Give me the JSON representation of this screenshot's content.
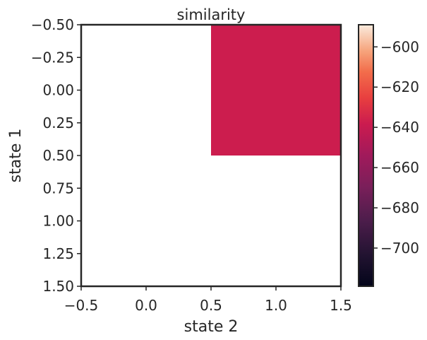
{
  "chart_data": {
    "type": "heatmap",
    "title": "similarity",
    "xlabel": "state 2",
    "ylabel": "state 1",
    "x_ticks": [
      "−0.5",
      "0.0",
      "0.5",
      "1.0",
      "1.5"
    ],
    "y_ticks": [
      "−0.50",
      "−0.25",
      "0.00",
      "0.25",
      "0.50",
      "0.75",
      "1.00",
      "1.25",
      "1.50"
    ],
    "xlim": [
      -0.5,
      1.5
    ],
    "ylim": [
      -0.5,
      1.5
    ],
    "y_inverted": true,
    "cells": [
      {
        "row": 0,
        "col": 0,
        "value": null
      },
      {
        "row": 0,
        "col": 1,
        "value": -660
      },
      {
        "row": 1,
        "col": 0,
        "value": null
      },
      {
        "row": 1,
        "col": 1,
        "value": null
      }
    ],
    "cell_color": "#cc1d4e",
    "colorbar": {
      "ticks": [
        "−600",
        "−620",
        "−640",
        "−660",
        "−680",
        "−700"
      ],
      "tick_values": [
        -600,
        -620,
        -640,
        -660,
        -680,
        -700
      ],
      "range": [
        -719,
        -589
      ],
      "colormap": "rocket"
    }
  }
}
